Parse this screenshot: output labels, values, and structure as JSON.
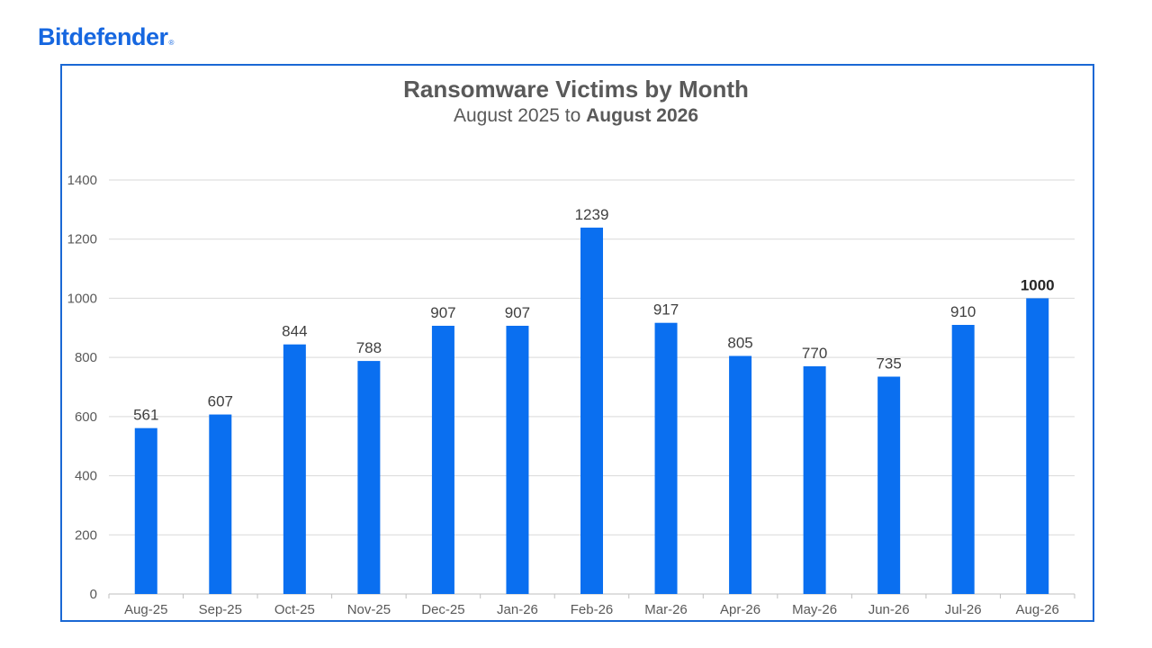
{
  "brand": {
    "name": "Bitdefender",
    "mark": "®"
  },
  "colors": {
    "bar": "#0a6ff0",
    "brand": "#1667e0",
    "frame": "#1a68d4",
    "grid": "#d9d9d9"
  },
  "chart_data": {
    "type": "bar",
    "title": "Ransomware Victims by Month",
    "subtitle_prefix": "August 2025 to ",
    "subtitle_bold": "August 2026",
    "categories": [
      "Aug-25",
      "Sep-25",
      "Oct-25",
      "Nov-25",
      "Dec-25",
      "Jan-26",
      "Feb-26",
      "Mar-26",
      "Apr-26",
      "May-26",
      "Jun-26",
      "Jul-26",
      "Aug-26"
    ],
    "values": [
      561,
      607,
      844,
      788,
      907,
      907,
      1239,
      917,
      805,
      770,
      735,
      910,
      1000
    ],
    "data_labels": [
      "561",
      "607",
      "844",
      "788",
      "907",
      "907",
      "1239",
      "917",
      "805",
      "770",
      "735",
      "910",
      "1000"
    ],
    "bold_label_index": 12,
    "ylim": [
      0,
      1400
    ],
    "yticks": [
      0,
      200,
      400,
      600,
      800,
      1000,
      1200,
      1400
    ],
    "grid": true,
    "legend": "none",
    "xlabel": "",
    "ylabel": ""
  }
}
